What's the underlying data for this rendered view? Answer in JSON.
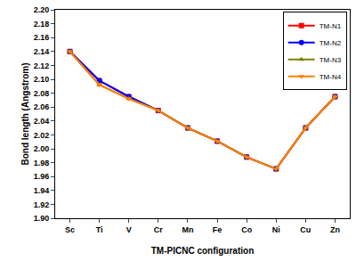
{
  "chart_data": {
    "type": "line",
    "x_label": "TM-PICNC configuration",
    "y_label": "Bond length (Angstrom)",
    "categories": [
      "Sc",
      "Ti",
      "V",
      "Cr",
      "Mn",
      "Fe",
      "Co",
      "Ni",
      "Cu",
      "Zn"
    ],
    "series": [
      {
        "name": "TM-N1",
        "color": "#ff0000",
        "marker": "square",
        "values": [
          2.14,
          2.098,
          2.075,
          2.055,
          2.03,
          2.011,
          1.988,
          1.971,
          2.03,
          2.075
        ]
      },
      {
        "name": "TM-N2",
        "color": "#0000ff",
        "marker": "circle",
        "values": [
          2.14,
          2.098,
          2.075,
          2.055,
          2.03,
          2.011,
          1.988,
          1.971,
          2.03,
          2.075
        ]
      },
      {
        "name": "TM-N3",
        "color": "#808000",
        "marker": "triangle-up",
        "values": [
          2.14,
          2.092,
          2.072,
          2.055,
          2.03,
          2.011,
          1.988,
          1.971,
          2.03,
          2.075
        ]
      },
      {
        "name": "TM-N4",
        "color": "#ff8000",
        "marker": "triangle-down",
        "values": [
          2.14,
          2.092,
          2.072,
          2.055,
          2.03,
          2.011,
          1.988,
          1.971,
          2.03,
          2.075
        ]
      }
    ],
    "ylim": [
      1.9,
      2.2
    ],
    "yticks": [
      {
        "value": 1.9,
        "label": "1.90"
      },
      {
        "value": 1.92,
        "label": "1.92"
      },
      {
        "value": 1.94,
        "label": "1.94"
      },
      {
        "value": 1.96,
        "label": "1.96"
      },
      {
        "value": 1.98,
        "label": "1.98"
      },
      {
        "value": 2.0,
        "label": "2.00"
      },
      {
        "value": 2.02,
        "label": "2.02"
      },
      {
        "value": 2.04,
        "label": "2.04"
      },
      {
        "value": 2.06,
        "label": "2.06"
      },
      {
        "value": 2.08,
        "label": "2.08"
      },
      {
        "value": 2.1,
        "label": "2.10"
      },
      {
        "value": 2.12,
        "label": "2.12"
      },
      {
        "value": 2.14,
        "label": "2.14"
      },
      {
        "value": 2.16,
        "label": "2.16"
      },
      {
        "value": 2.18,
        "label": "2.18"
      },
      {
        "value": 2.2,
        "label": "2.20"
      }
    ],
    "grid": false,
    "legend": "upper right"
  }
}
